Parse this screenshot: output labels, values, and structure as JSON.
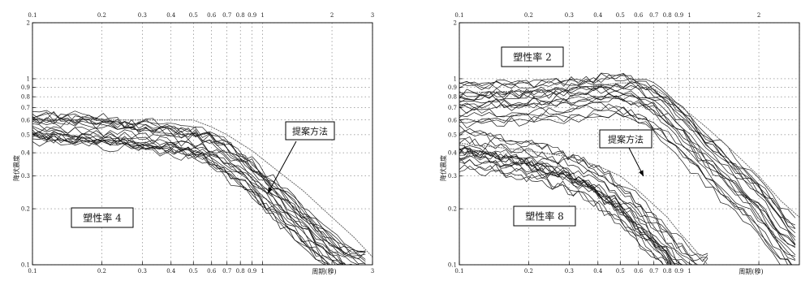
{
  "chart_data": [
    {
      "type": "line",
      "xscale": "log",
      "yscale": "log",
      "xlim": [
        0.1,
        3
      ],
      "ylim": [
        0.1,
        2
      ],
      "xticks": [
        "0.1",
        "0.2",
        "0.3",
        "0.4",
        "0.5",
        "0.6",
        "0.7",
        "0.8",
        "0.9",
        "1",
        "2",
        "3"
      ],
      "yticks": [
        "0.1",
        "0.2",
        "0.3",
        "0.4",
        "0.5",
        "0.6",
        "0.7",
        "0.8",
        "0.9",
        "1",
        "2"
      ],
      "xlabel": "周期(秒)",
      "ylabel": "降伏震度",
      "grid": true,
      "annotations": [
        {
          "text": "塑性率 4",
          "boxed": true
        },
        {
          "text": "提案方法",
          "boxed": true,
          "arrow": true
        }
      ],
      "series": [
        {
          "group": "ensemble",
          "x": [
            0.1,
            0.2,
            0.3,
            0.4,
            0.5,
            0.6,
            0.7,
            0.8,
            0.9,
            1.0,
            1.2,
            1.5,
            2.0,
            2.5
          ],
          "values": [
            0.56,
            0.53,
            0.5,
            0.48,
            0.46,
            0.43,
            0.39,
            0.34,
            0.31,
            0.27,
            0.22,
            0.17,
            0.12,
            0.1
          ]
        },
        {
          "group": "proposed",
          "x": [
            0.1,
            0.2,
            0.3,
            0.4,
            0.5,
            0.6,
            0.7,
            0.8,
            0.9,
            1.0,
            1.2,
            1.5,
            2.0,
            2.5,
            3.0
          ],
          "values": [
            0.6,
            0.6,
            0.6,
            0.6,
            0.6,
            0.55,
            0.5,
            0.45,
            0.41,
            0.37,
            0.31,
            0.25,
            0.18,
            0.14,
            0.11
          ]
        }
      ]
    },
    {
      "type": "line",
      "xscale": "log",
      "yscale": "log",
      "xlim": [
        0.1,
        3
      ],
      "ylim": [
        0.1,
        2
      ],
      "xticks": [
        "0.1",
        "0.2",
        "0.3",
        "0.4",
        "0.5",
        "0.6",
        "0.7",
        "0.8",
        "0.9",
        "1",
        "2"
      ],
      "yticks": [
        "0.1",
        "0.2",
        "0.3",
        "0.4",
        "0.5",
        "0.6",
        "0.7",
        "0.8",
        "0.9",
        "1",
        "2"
      ],
      "xlabel": "周期(秒)",
      "ylabel": "降伏震度",
      "grid": true,
      "annotations": [
        {
          "text": "塑性率 2",
          "boxed": true
        },
        {
          "text": "提案方法",
          "boxed": true,
          "arrow": true
        },
        {
          "text": "塑性率 8",
          "boxed": true
        }
      ],
      "series": [
        {
          "group": "ensemble-ductility-2",
          "x": [
            0.1,
            0.2,
            0.3,
            0.4,
            0.5,
            0.6,
            0.7,
            0.8,
            0.9,
            1.0,
            1.2,
            1.5,
            2.0,
            2.5,
            3.0
          ],
          "values": [
            0.72,
            0.74,
            0.76,
            0.8,
            0.8,
            0.75,
            0.68,
            0.6,
            0.52,
            0.45,
            0.36,
            0.28,
            0.2,
            0.14,
            0.11
          ]
        },
        {
          "group": "proposed-ductility-2",
          "x": [
            0.1,
            0.2,
            0.3,
            0.4,
            0.5,
            0.6,
            0.7,
            0.8,
            0.9,
            1.0,
            1.2,
            1.5,
            2.0,
            2.5,
            3.0
          ],
          "values": [
            0.84,
            0.86,
            0.88,
            0.92,
            0.95,
            0.95,
            0.88,
            0.8,
            0.72,
            0.65,
            0.54,
            0.42,
            0.3,
            0.22,
            0.18
          ]
        },
        {
          "group": "ensemble-ductility-8",
          "x": [
            0.1,
            0.2,
            0.3,
            0.4,
            0.5,
            0.6,
            0.7,
            0.8,
            0.9,
            1.0
          ],
          "values": [
            0.42,
            0.36,
            0.31,
            0.26,
            0.21,
            0.17,
            0.14,
            0.12,
            0.1,
            0.09
          ]
        },
        {
          "group": "proposed-ductility-8",
          "x": [
            0.1,
            0.2,
            0.3,
            0.4,
            0.5,
            0.6,
            0.7,
            0.8,
            0.9,
            1.0,
            1.2
          ],
          "values": [
            0.45,
            0.41,
            0.38,
            0.34,
            0.3,
            0.25,
            0.21,
            0.18,
            0.15,
            0.13,
            0.1
          ]
        }
      ]
    }
  ]
}
